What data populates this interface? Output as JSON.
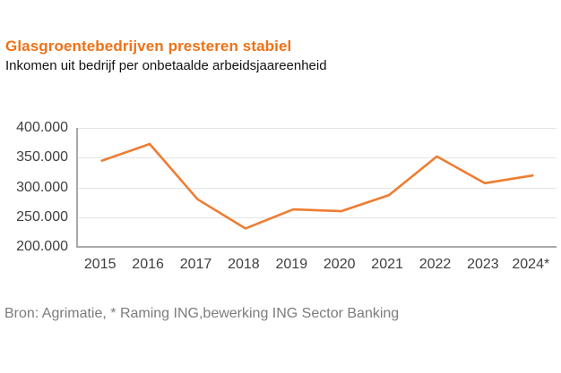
{
  "header": {
    "title": "Glasgroentebedrijven presteren stabiel",
    "subtitle": "Inkomen uit bedrijf per onbetaalde arbeidsjaareenheid",
    "title_color": "#ed7218"
  },
  "footer": {
    "source": "Bron: Agrimatie, * Raming ING,bewerking ING Sector Banking",
    "source_color": "#7c7c7c"
  },
  "chart_data": {
    "type": "line",
    "title": "Glasgroentebedrijven presteren stabiel",
    "subtitle": "Inkomen uit bedrijf per onbetaalde arbeidsjaareenheid",
    "categories": [
      "2015",
      "2016",
      "2017",
      "2018",
      "2019",
      "2020",
      "2021",
      "2022",
      "2023",
      "2024*"
    ],
    "values": [
      345000,
      373000,
      280000,
      231000,
      263000,
      260000,
      287000,
      352000,
      307000,
      320000
    ],
    "ylim": [
      200000,
      400000
    ],
    "yticks": [
      400000,
      350000,
      300000,
      250000,
      200000
    ],
    "ytick_labels": [
      "400.000",
      "350.000",
      "300.000",
      "250.000",
      "200.000"
    ],
    "xlabel": "",
    "ylabel": "",
    "grid": true,
    "legend": "none",
    "line_color": "#ed7d31",
    "axis_line_color": "#a9a9a9",
    "gridline_color": "#e4e4e4"
  }
}
